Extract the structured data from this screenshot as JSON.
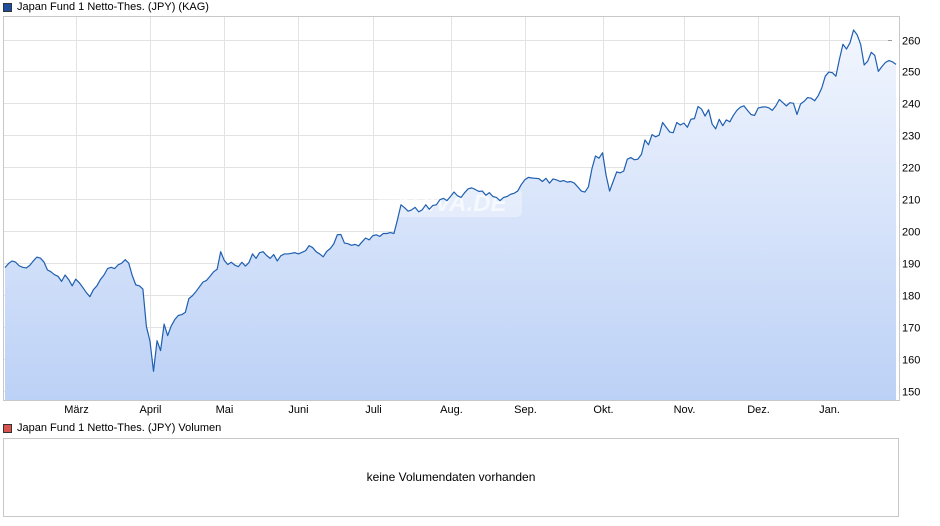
{
  "legend": {
    "price_label": "Japan Fund 1 Netto-Thes. (JPY) (KAG)",
    "price_color": "#1f4e9c",
    "volume_label": "Japan Fund 1 Netto-Thes. (JPY) Volumen",
    "volume_color": "#d9534f"
  },
  "watermark": "ARIVA.DE",
  "volume_panel": {
    "message": "keine Volumendaten vorhanden"
  },
  "chart_data": {
    "type": "area",
    "title": "",
    "xlabel": "",
    "ylabel": "",
    "ylim": [
      147,
      267
    ],
    "yticks": [
      150,
      160,
      170,
      180,
      190,
      200,
      210,
      220,
      230,
      240,
      250,
      260
    ],
    "month_ticks": [
      {
        "label": "März",
        "index": 20
      },
      {
        "label": "April",
        "index": 41
      },
      {
        "label": "Mai",
        "index": 62
      },
      {
        "label": "Juni",
        "index": 83
      },
      {
        "label": "Juli",
        "index": 104
      },
      {
        "label": "Aug.",
        "index": 126
      },
      {
        "label": "Sep.",
        "index": 147
      },
      {
        "label": "Okt.",
        "index": 169
      },
      {
        "label": "Nov.",
        "index": 192
      },
      {
        "label": "Dez.",
        "index": 213
      },
      {
        "label": "Jan.",
        "index": 233
      }
    ],
    "grid": true,
    "line_color": "#1f5fb0",
    "fill_top_color": "#f2f6fe",
    "fill_bottom_color": "#bcd1f6",
    "series": [
      {
        "values": [
          188.5,
          189.8,
          190.6,
          190.2,
          189.1,
          188.6,
          188.4,
          189.2,
          190.6,
          191.8,
          191.5,
          190.3,
          187.8,
          187.2,
          186.3,
          185.8,
          184.2,
          186.2,
          184.8,
          182.8,
          184.9,
          183.8,
          182.3,
          180.7,
          179.4,
          181.6,
          182.8,
          184.8,
          186.2,
          188.2,
          188.6,
          188.2,
          189.4,
          189.9,
          191.0,
          189.9,
          186.0,
          183.1,
          182.8,
          181.8,
          170.0,
          165.5,
          156.0,
          165.6,
          162.5,
          170.8,
          167.2,
          170.2,
          172.2,
          173.5,
          173.8,
          174.5,
          178.8,
          179.7,
          181.0,
          182.5,
          184.0,
          184.5,
          185.8,
          187.2,
          188.0,
          193.5,
          190.8,
          189.5,
          190.2,
          189.3,
          188.8,
          190.2,
          189.0,
          190.1,
          192.8,
          191.4,
          193.2,
          193.5,
          192.3,
          191.4,
          192.6,
          190.6,
          192.2,
          192.8,
          192.8,
          193.0,
          193.2,
          192.8,
          193.3,
          193.8,
          195.4,
          194.8,
          193.5,
          192.8,
          191.9,
          193.6,
          194.5,
          196.0,
          198.8,
          198.9,
          196.2,
          196.0,
          195.5,
          195.8,
          195.3,
          196.6,
          197.8,
          197.2,
          198.5,
          198.8,
          198.3,
          199.2,
          199.2,
          199.5,
          199.2,
          203.5,
          208.2,
          207.3,
          206.2,
          206.6,
          207.4,
          206.0,
          206.6,
          208.2,
          206.8,
          208.0,
          208.2,
          209.8,
          210.2,
          209.5,
          210.8,
          212.2,
          211.0,
          210.5,
          212.0,
          213.2,
          213.5,
          213.0,
          212.4,
          212.5,
          211.2,
          212.0,
          210.8,
          210.5,
          209.5,
          210.5,
          210.8,
          211.5,
          211.8,
          212.5,
          214.5,
          216.0,
          216.8,
          216.6,
          216.5,
          216.4,
          215.5,
          216.5,
          215.0,
          216.3,
          216.0,
          215.5,
          215.8,
          215.3,
          215.5,
          215.0,
          213.8,
          212.5,
          212.2,
          213.8,
          219.5,
          223.5,
          222.8,
          224.5,
          217.5,
          212.5,
          215.5,
          218.5,
          218.2,
          218.8,
          222.5,
          223.0,
          222.3,
          222.5,
          224.0,
          228.5,
          227.0,
          230.2,
          229.5,
          230.0,
          234.0,
          232.5,
          231.0,
          230.8,
          234.0,
          233.2,
          233.8,
          232.5,
          235.0,
          235.2,
          239.0,
          238.2,
          236.0,
          238.0,
          233.5,
          232.0,
          235.0,
          233.0,
          234.8,
          234.2,
          236.2,
          237.8,
          238.8,
          239.2,
          237.8,
          236.5,
          236.2,
          238.5,
          238.8,
          238.9,
          238.6,
          237.8,
          239.2,
          241.2,
          240.2,
          239.2,
          240.2,
          240.0,
          236.5,
          239.8,
          240.6,
          241.8,
          241.6,
          240.8,
          242.4,
          244.8,
          248.5,
          249.8,
          249.6,
          248.5,
          253.8,
          258.5,
          257.0,
          259.0,
          263.0,
          261.5,
          258.5,
          252.0,
          253.2,
          256.0,
          255.0,
          250.0,
          251.5,
          252.8,
          253.4,
          253.0,
          252.2
        ]
      }
    ]
  }
}
